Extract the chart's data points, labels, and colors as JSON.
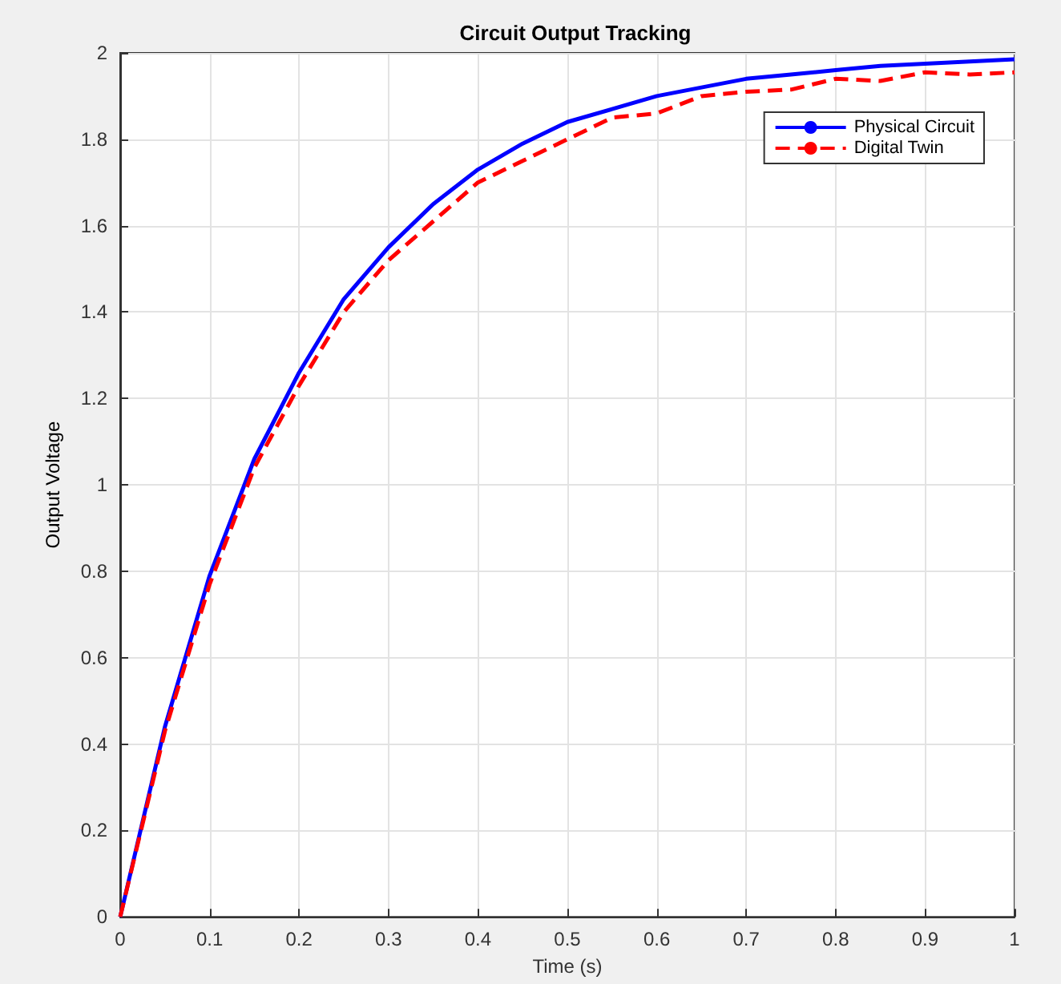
{
  "chart_data": {
    "type": "line",
    "title": "Circuit Output Tracking",
    "xlabel": "Time (s)",
    "ylabel": "Output Voltage",
    "x": [
      0,
      0.05,
      0.1,
      0.15,
      0.2,
      0.25,
      0.3,
      0.35,
      0.4,
      0.45,
      0.5,
      0.55,
      0.6,
      0.65,
      0.7,
      0.75,
      0.8,
      0.85,
      0.9,
      0.95,
      1
    ],
    "series": [
      {
        "name": "Physical Circuit",
        "color": "#0000ff",
        "line_style": "solid",
        "values": [
          0,
          0.44,
          0.79,
          1.06,
          1.26,
          1.43,
          1.55,
          1.65,
          1.73,
          1.79,
          1.84,
          1.87,
          1.9,
          1.92,
          1.94,
          1.95,
          1.96,
          1.97,
          1.975,
          1.98,
          1.985
        ]
      },
      {
        "name": "Digital Twin",
        "color": "#ff0000",
        "line_style": "dashed",
        "values": [
          0,
          0.43,
          0.77,
          1.04,
          1.23,
          1.4,
          1.52,
          1.61,
          1.7,
          1.75,
          1.8,
          1.85,
          1.86,
          1.9,
          1.91,
          1.915,
          1.94,
          1.935,
          1.955,
          1.95,
          1.955
        ]
      }
    ],
    "xlim": [
      0,
      1
    ],
    "xticks": [
      0,
      0.1,
      0.2,
      0.3,
      0.4,
      0.5,
      0.6,
      0.7,
      0.8,
      0.9,
      1
    ],
    "ylim": [
      0,
      2
    ],
    "yticks": [
      0,
      0.2,
      0.4,
      0.6,
      0.8,
      1,
      1.2,
      1.4,
      1.6,
      1.8,
      2
    ],
    "grid": true,
    "legend": "top right",
    "marker": "none"
  }
}
